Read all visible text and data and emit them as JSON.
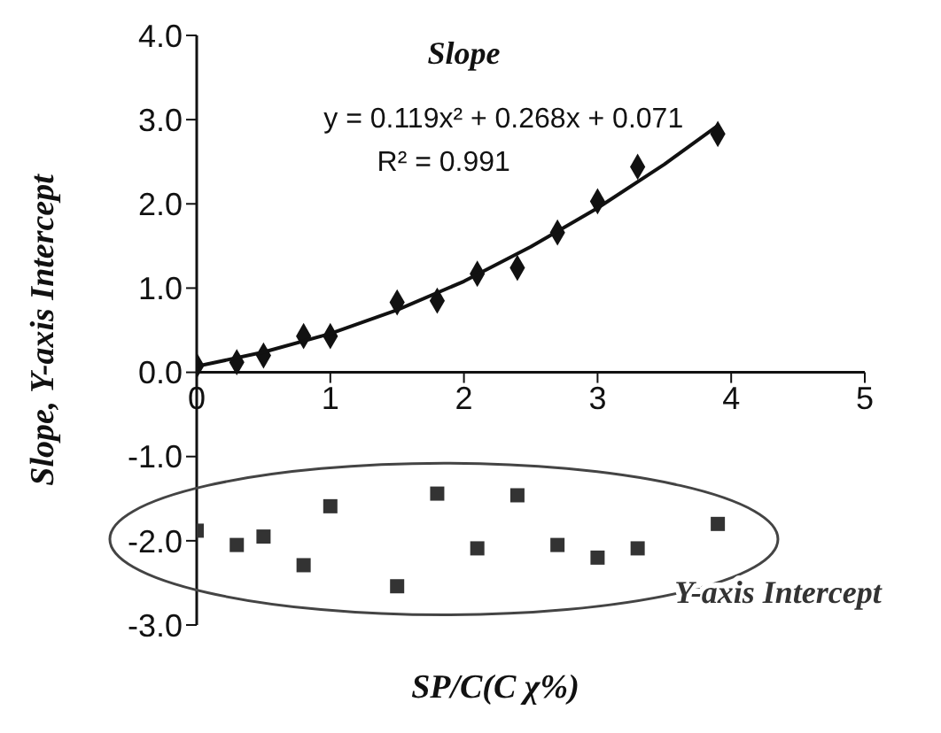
{
  "chart_data": {
    "type": "scatter",
    "xlabel": "SP/C(C χ%)",
    "ylabel": "Slope, Y-axis Intercept",
    "xlim": [
      0,
      5
    ],
    "xticks": [
      0,
      1,
      2,
      3,
      4,
      5
    ],
    "ylim": [
      -3,
      4
    ],
    "yticks": [
      {
        "value": 4,
        "label": "4.0"
      },
      {
        "value": 3,
        "label": "3.0"
      },
      {
        "value": 2,
        "label": "2.0"
      },
      {
        "value": 1,
        "label": "1.0"
      },
      {
        "value": 0,
        "label": "0.0"
      },
      {
        "value": -1,
        "label": "-1.0"
      },
      {
        "value": -2,
        "label": "-2.0"
      },
      {
        "value": -3,
        "label": "-3.0"
      }
    ],
    "series": [
      {
        "name": "Slope",
        "marker": "diamond",
        "color": "#111111",
        "x": [
          0,
          0.3,
          0.5,
          0.8,
          1,
          1.5,
          1.8,
          2.1,
          2.4,
          2.7,
          3,
          3.3,
          3.9
        ],
        "values": [
          0.08,
          0.12,
          0.2,
          0.43,
          0.43,
          0.83,
          0.85,
          1.17,
          1.24,
          1.66,
          2.03,
          2.44,
          2.83
        ]
      },
      {
        "type": "line",
        "marker": "none",
        "color": "#111111",
        "x": [
          0,
          0.5,
          1,
          1.5,
          2,
          2.5,
          3,
          3.5,
          3.9
        ],
        "values": [
          0.07,
          0.24,
          0.46,
          0.74,
          1.08,
          1.49,
          1.95,
          2.47,
          2.93
        ]
      },
      {
        "name": "Y-axis Intercept",
        "marker": "square",
        "color": "#333333",
        "x": [
          0,
          0.3,
          0.5,
          0.8,
          1,
          1.5,
          1.8,
          2.1,
          2.4,
          2.7,
          3,
          3.3,
          3.9
        ],
        "values": [
          -1.88,
          -2.05,
          -1.95,
          -2.29,
          -1.59,
          -2.54,
          -1.44,
          -2.09,
          -1.46,
          -2.05,
          -2.2,
          -2.09,
          -1.8
        ]
      }
    ],
    "annotations": [
      "y = 0.119x² + 0.268x + 0.071",
      "R² = 0.991"
    ]
  }
}
